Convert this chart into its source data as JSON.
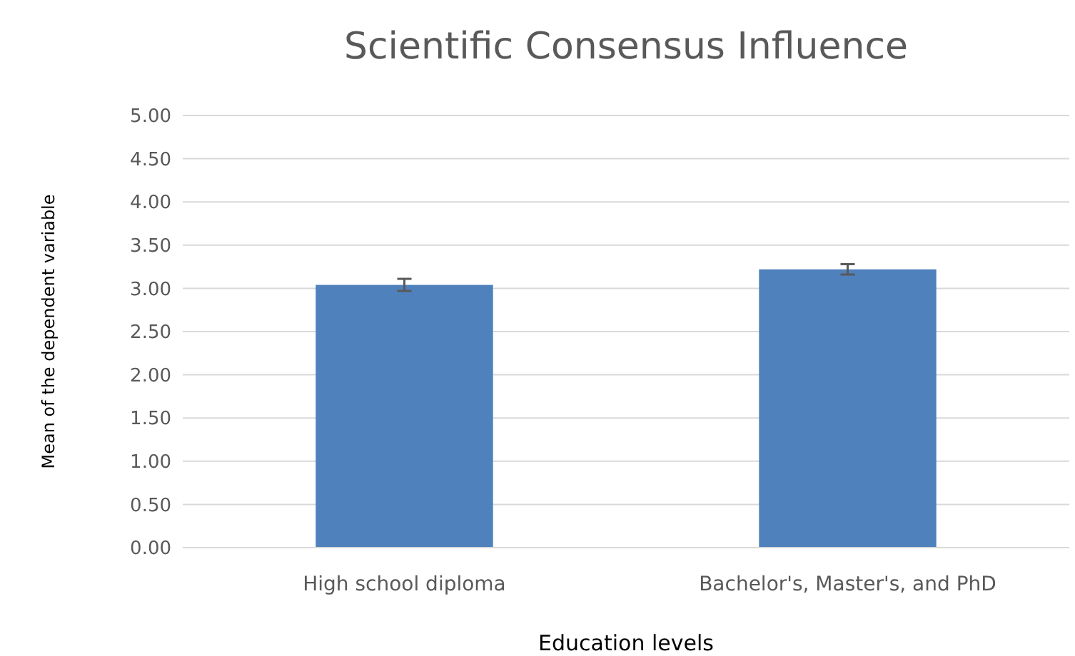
{
  "chart_data": {
    "type": "bar",
    "title": "Scientific Consensus Influence",
    "xlabel": "Education levels",
    "ylabel": "Mean of the dependent variable",
    "categories": [
      "High school diploma",
      "Bachelor's, Master's, and PhD"
    ],
    "values": [
      3.04,
      3.22
    ],
    "errors": [
      0.07,
      0.06
    ],
    "color": "#4f81bd",
    "ylim": [
      0,
      5
    ],
    "yticks": [
      {
        "value": 0,
        "label": "0.00"
      },
      {
        "value": 0.5,
        "label": "0.50"
      },
      {
        "value": 1,
        "label": "1.00"
      },
      {
        "value": 1.5,
        "label": "1.50"
      },
      {
        "value": 2,
        "label": "2.00"
      },
      {
        "value": 2.5,
        "label": "2.50"
      },
      {
        "value": 3,
        "label": "3.00"
      },
      {
        "value": 3.5,
        "label": "3.50"
      },
      {
        "value": 4,
        "label": "4.00"
      },
      {
        "value": 4.5,
        "label": "4.50"
      },
      {
        "value": 5,
        "label": "5.00"
      }
    ],
    "grid": "y"
  }
}
